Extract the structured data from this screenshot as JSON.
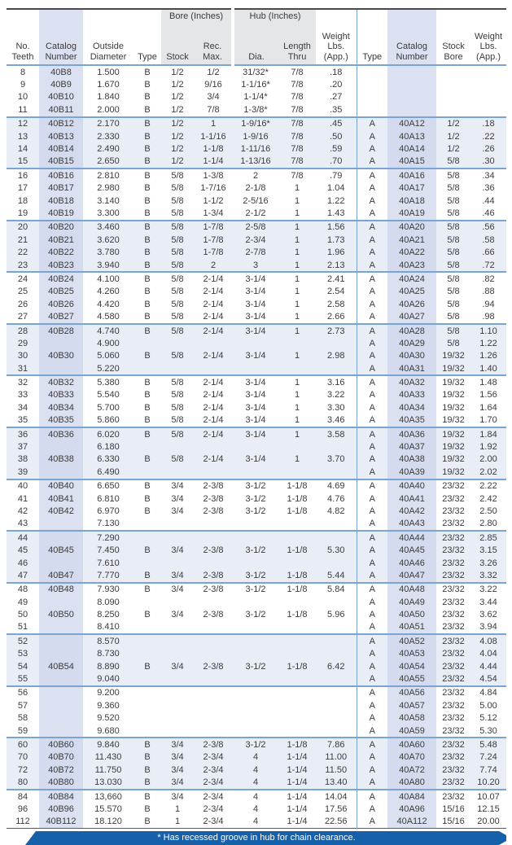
{
  "colors": {
    "band": "#e8edf6",
    "catalog_band": "#dce1f1",
    "catalog_band_dark": "#d4dbee",
    "group_shade": "#e5e6e7",
    "rule_blue": "#79a5d4",
    "banner": "#1560a8"
  },
  "table": {
    "header": {
      "teeth": "No.\nTeeth",
      "catalog": "Catalog\nNumber",
      "outside": "Outside\nDiameter",
      "type": "Type",
      "bore_group": "Bore (Inches)",
      "stock": "Stock",
      "rec_max": "Rec.\nMax.",
      "hub_group": "Hub (Inches)",
      "dia": "Dia.",
      "length_thru": "Length\nThru",
      "weight": "Weight\nLbs.\n(App.)",
      "type2": "Type",
      "catalog2": "Catalog\nNumber",
      "stock_bore": "Stock\nBore",
      "weight2": "Weight\nLbs.\n(App.)"
    },
    "rows": [
      [
        "8",
        "40B8",
        "1.500",
        "B",
        "1/2",
        "1/2",
        "31/32*",
        "7/8",
        ".18",
        "",
        "",
        "",
        ""
      ],
      [
        "9",
        "40B9",
        "1.670",
        "B",
        "1/2",
        "9/16",
        "1-1/16*",
        "7/8",
        ".20",
        "",
        "",
        "",
        ""
      ],
      [
        "10",
        "40B10",
        "1.840",
        "B",
        "1/2",
        "3/4",
        "1-1/4*",
        "7/8",
        ".27",
        "",
        "",
        "",
        ""
      ],
      [
        "11",
        "40B11",
        "2.000",
        "B",
        "1/2",
        "7/8",
        "1-3/8*",
        "7/8",
        ".35",
        "",
        "",
        "",
        ""
      ],
      [
        "12",
        "40B12",
        "2.170",
        "B",
        "1/2",
        "1",
        "1-9/16*",
        "7/8",
        ".45",
        "A",
        "40A12",
        "1/2",
        ".18"
      ],
      [
        "13",
        "40B13",
        "2.330",
        "B",
        "1/2",
        "1-1/16",
        "1-9/16",
        "7/8",
        ".50",
        "A",
        "40A13",
        "1/2",
        ".22"
      ],
      [
        "14",
        "40B14",
        "2.490",
        "B",
        "1/2",
        "1-1/8",
        "1-11/16",
        "7/8",
        ".59",
        "A",
        "40A14",
        "1/2",
        ".26"
      ],
      [
        "15",
        "40B15",
        "2.650",
        "B",
        "1/2",
        "1-1/4",
        "1-13/16",
        "7/8",
        ".70",
        "A",
        "40A15",
        "5/8",
        ".30"
      ],
      [
        "16",
        "40B16",
        "2.810",
        "B",
        "5/8",
        "1-3/8",
        "2",
        "7/8",
        ".79",
        "A",
        "40A16",
        "5/8",
        ".34"
      ],
      [
        "17",
        "40B17",
        "2.980",
        "B",
        "5/8",
        "1-7/16",
        "2-1/8",
        "1",
        "1.04",
        "A",
        "40A17",
        "5/8",
        ".36"
      ],
      [
        "18",
        "40B18",
        "3.140",
        "B",
        "5/8",
        "1-1/2",
        "2-5/16",
        "1",
        "1.22",
        "A",
        "40A18",
        "5/8",
        ".44"
      ],
      [
        "19",
        "40B19",
        "3.300",
        "B",
        "5/8",
        "1-3/4",
        "2-1/2",
        "1",
        "1.43",
        "A",
        "40A19",
        "5/8",
        ".46"
      ],
      [
        "20",
        "40B20",
        "3.460",
        "B",
        "5/8",
        "1-7/8",
        "2-5/8",
        "1",
        "1.56",
        "A",
        "40A20",
        "5/8",
        ".56"
      ],
      [
        "21",
        "40B21",
        "3.620",
        "B",
        "5/8",
        "1-7/8",
        "2-3/4",
        "1",
        "1.73",
        "A",
        "40A21",
        "5/8",
        ".58"
      ],
      [
        "22",
        "40B22",
        "3.780",
        "B",
        "5/8",
        "1-7/8",
        "2-7/8",
        "1",
        "1.96",
        "A",
        "40A22",
        "5/8",
        ".66"
      ],
      [
        "23",
        "40B23",
        "3.940",
        "B",
        "5/8",
        "2",
        "3",
        "1",
        "2.13",
        "A",
        "40A23",
        "5/8",
        ".72"
      ],
      [
        "24",
        "40B24",
        "4.100",
        "B",
        "5/8",
        "2-1/4",
        "3-1/4",
        "1",
        "2.41",
        "A",
        "40A24",
        "5/8",
        ".82"
      ],
      [
        "25",
        "40B25",
        "4.260",
        "B",
        "5/8",
        "2-1/4",
        "3-1/4",
        "1",
        "2.54",
        "A",
        "40A25",
        "5/8",
        ".88"
      ],
      [
        "26",
        "40B26",
        "4.420",
        "B",
        "5/8",
        "2-1/4",
        "3-1/4",
        "1",
        "2.58",
        "A",
        "40A26",
        "5/8",
        ".94"
      ],
      [
        "27",
        "40B27",
        "4.580",
        "B",
        "5/8",
        "2-1/4",
        "3-1/4",
        "1",
        "2.66",
        "A",
        "40A27",
        "5/8",
        ".98"
      ],
      [
        "28",
        "40B28",
        "4.740",
        "B",
        "5/8",
        "2-1/4",
        "3-1/4",
        "1",
        "2.73",
        "A",
        "40A28",
        "5/8",
        "1.10"
      ],
      [
        "29",
        "",
        "4.900",
        "",
        "",
        "",
        "",
        "",
        "",
        "A",
        "40A29",
        "5/8",
        "1.22"
      ],
      [
        "30",
        "40B30",
        "5.060",
        "B",
        "5/8",
        "2-1/4",
        "3-1/4",
        "1",
        "2.98",
        "A",
        "40A30",
        "19/32",
        "1.26"
      ],
      [
        "31",
        "",
        "5.220",
        "",
        "",
        "",
        "",
        "",
        "",
        "A",
        "40A31",
        "19/32",
        "1.40"
      ],
      [
        "32",
        "40B32",
        "5.380",
        "B",
        "5/8",
        "2-1/4",
        "3-1/4",
        "1",
        "3.16",
        "A",
        "40A32",
        "19/32",
        "1.48"
      ],
      [
        "33",
        "40B33",
        "5.540",
        "B",
        "5/8",
        "2-1/4",
        "3-1/4",
        "1",
        "3.22",
        "A",
        "40A33",
        "19/32",
        "1.56"
      ],
      [
        "34",
        "40B34",
        "5.700",
        "B",
        "5/8",
        "2-1/4",
        "3-1/4",
        "1",
        "3.30",
        "A",
        "40A34",
        "19/32",
        "1.64"
      ],
      [
        "35",
        "40B35",
        "5.860",
        "B",
        "5/8",
        "2-1/4",
        "3-1/4",
        "1",
        "3.46",
        "A",
        "40A35",
        "19/32",
        "1.70"
      ],
      [
        "36",
        "40B36",
        "6.020",
        "B",
        "5/8",
        "2-1/4",
        "3-1/4",
        "1",
        "3.58",
        "A",
        "40A36",
        "19/32",
        "1.84"
      ],
      [
        "37",
        "",
        "6.180",
        "",
        "",
        "",
        "",
        "",
        "",
        "A",
        "40A37",
        "19/32",
        "1.92"
      ],
      [
        "38",
        "40B38",
        "6.330",
        "B",
        "5/8",
        "2-1/4",
        "3-1/4",
        "1",
        "3.70",
        "A",
        "40A38",
        "19/32",
        "2.00"
      ],
      [
        "39",
        "",
        "6.490",
        "",
        "",
        "",
        "",
        "",
        "",
        "A",
        "40A39",
        "19/32",
        "2.02"
      ],
      [
        "40",
        "40B40",
        "6.650",
        "B",
        "3/4",
        "2-3/8",
        "3-1/2",
        "1-1/8",
        "4.69",
        "A",
        "40A40",
        "23/32",
        "2.22"
      ],
      [
        "41",
        "40B41",
        "6.810",
        "B",
        "3/4",
        "2-3/8",
        "3-1/2",
        "1-1/8",
        "4.76",
        "A",
        "40A41",
        "23/32",
        "2.42"
      ],
      [
        "42",
        "40B42",
        "6.970",
        "B",
        "3/4",
        "2-3/8",
        "3-1/2",
        "1-1/8",
        "4.82",
        "A",
        "40A42",
        "23/32",
        "2.50"
      ],
      [
        "43",
        "",
        "7.130",
        "",
        "",
        "",
        "",
        "",
        "",
        "A",
        "40A43",
        "23/32",
        "2.80"
      ],
      [
        "44",
        "",
        "7.290",
        "",
        "",
        "",
        "",
        "",
        "",
        "A",
        "40A44",
        "23/32",
        "2.85"
      ],
      [
        "45",
        "40B45",
        "7.450",
        "B",
        "3/4",
        "2-3/8",
        "3-1/2",
        "1-1/8",
        "5.30",
        "A",
        "40A45",
        "23/32",
        "3.15"
      ],
      [
        "46",
        "",
        "7.610",
        "",
        "",
        "",
        "",
        "",
        "",
        "A",
        "40A46",
        "23/32",
        "3.26"
      ],
      [
        "47",
        "40B47",
        "7.770",
        "B",
        "3/4",
        "2-3/8",
        "3-1/2",
        "1-1/8",
        "5.44",
        "A",
        "40A47",
        "23/32",
        "3.32"
      ],
      [
        "48",
        "40B48",
        "7.930",
        "B",
        "3/4",
        "2-3/8",
        "3-1/2",
        "1-1/8",
        "5.84",
        "A",
        "40A48",
        "23/32",
        "3.22"
      ],
      [
        "49",
        "",
        "8.090",
        "",
        "",
        "",
        "",
        "",
        "",
        "A",
        "40A49",
        "23/32",
        "3.44"
      ],
      [
        "50",
        "40B50",
        "8.250",
        "B",
        "3/4",
        "2-3/8",
        "3-1/2",
        "1-1/8",
        "5.96",
        "A",
        "40A50",
        "23/32",
        "3.62"
      ],
      [
        "51",
        "",
        "8.410",
        "",
        "",
        "",
        "",
        "",
        "",
        "A",
        "40A51",
        "23/32",
        "3.94"
      ],
      [
        "52",
        "",
        "8.570",
        "",
        "",
        "",
        "",
        "",
        "",
        "A",
        "40A52",
        "23/32",
        "4.08"
      ],
      [
        "53",
        "",
        "8.730",
        "",
        "",
        "",
        "",
        "",
        "",
        "A",
        "40A53",
        "23/32",
        "4.04"
      ],
      [
        "54",
        "40B54",
        "8.890",
        "B",
        "3/4",
        "2-3/8",
        "3-1/2",
        "1-1/8",
        "6.42",
        "A",
        "40A54",
        "23/32",
        "4.44"
      ],
      [
        "55",
        "",
        "9.040",
        "",
        "",
        "",
        "",
        "",
        "",
        "A",
        "40A55",
        "23/32",
        "4.54"
      ],
      [
        "56",
        "",
        "9.200",
        "",
        "",
        "",
        "",
        "",
        "",
        "A",
        "40A56",
        "23/32",
        "4.84"
      ],
      [
        "57",
        "",
        "9.360",
        "",
        "",
        "",
        "",
        "",
        "",
        "A",
        "40A57",
        "23/32",
        "5.00"
      ],
      [
        "58",
        "",
        "9.520",
        "",
        "",
        "",
        "",
        "",
        "",
        "A",
        "40A58",
        "23/32",
        "5.12"
      ],
      [
        "59",
        "",
        "9.680",
        "",
        "",
        "",
        "",
        "",
        "",
        "A",
        "40A59",
        "23/32",
        "5.30"
      ],
      [
        "60",
        "40B60",
        "9.840",
        "B",
        "3/4",
        "2-3/8",
        "3-1/2",
        "1-1/8",
        "7.86",
        "A",
        "40A60",
        "23/32",
        "5.48"
      ],
      [
        "70",
        "40B70",
        "11.430",
        "B",
        "3/4",
        "2-3/4",
        "4",
        "1-1/4",
        "11.00",
        "A",
        "40A70",
        "23/32",
        "7.24"
      ],
      [
        "72",
        "40B72",
        "11.750",
        "B",
        "3/4",
        "2-3/4",
        "4",
        "1-1/4",
        "11.50",
        "A",
        "40A72",
        "23/32",
        "7.74"
      ],
      [
        "80",
        "40B80",
        "13.030",
        "B",
        "3/4",
        "2-3/4",
        "4",
        "1-1/4",
        "13.40",
        "A",
        "40A80",
        "23/32",
        "10.20"
      ],
      [
        "84",
        "40B84",
        "13,660",
        "B",
        "3/4",
        "2-3/4",
        "4",
        "1-1/4",
        "14.04",
        "A",
        "40A84",
        "23/32",
        "10.07"
      ],
      [
        "96",
        "40B96",
        "15.570",
        "B",
        "1",
        "2-3/4",
        "4",
        "1-1/4",
        "17.56",
        "A",
        "40A96",
        "15/16",
        "12.15"
      ],
      [
        "112",
        "40B112",
        "18.120",
        "B",
        "1",
        "2-3/4",
        "4",
        "1-1/4",
        "22.56",
        "A",
        "40A112",
        "15/16",
        "20.00"
      ]
    ],
    "footnote": "* Has recessed groove in hub for chain clearance."
  }
}
